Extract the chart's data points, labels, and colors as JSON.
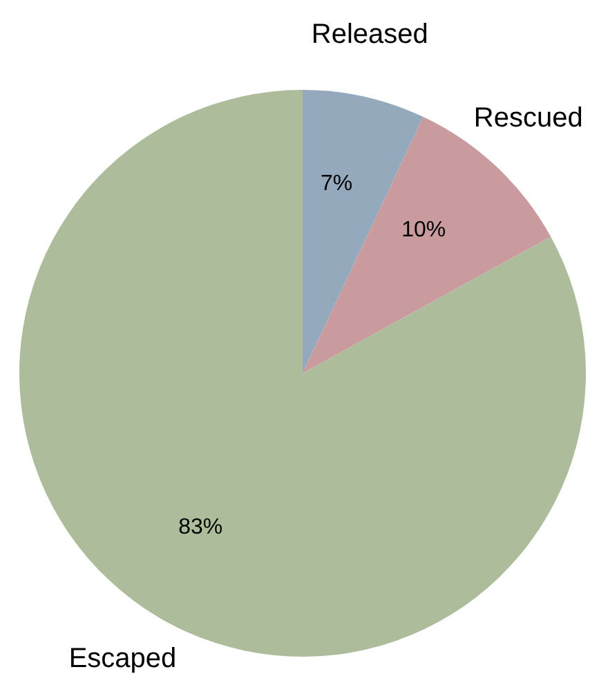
{
  "chart_data": {
    "type": "pie",
    "categories": [
      "Released",
      "Rescued",
      "Escaped"
    ],
    "values": [
      7,
      10,
      83
    ],
    "value_labels": [
      "7%",
      "10%",
      "83%"
    ],
    "colors": [
      "#94a9bb",
      "#c99b9e",
      "#adbc9b"
    ],
    "legend": false
  }
}
